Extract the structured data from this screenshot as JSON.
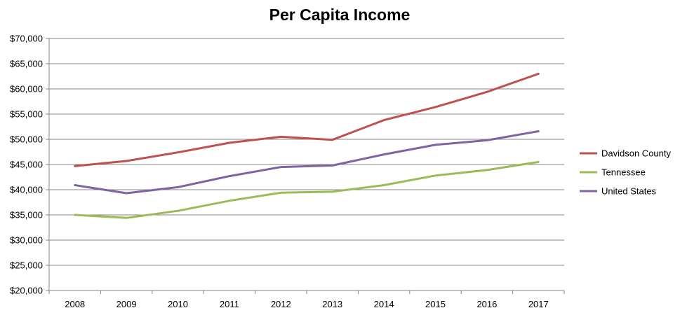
{
  "chart_data": {
    "type": "line",
    "title": "Per Capita Income",
    "xlabel": "",
    "ylabel": "",
    "categories": [
      "2008",
      "2009",
      "2010",
      "2011",
      "2012",
      "2013",
      "2014",
      "2015",
      "2016",
      "2017"
    ],
    "ylim": [
      20000,
      70000
    ],
    "ystep": 5000,
    "ytick_labels": [
      "$20,000",
      "$25,000",
      "$30,000",
      "$35,000",
      "$40,000",
      "$45,000",
      "$50,000",
      "$55,000",
      "$60,000",
      "$65,000",
      "$70,000"
    ],
    "grid": true,
    "legend_position": "right",
    "series": [
      {
        "name": "Davidson County",
        "color": "#C0504D",
        "values": [
          44700,
          45700,
          47400,
          49300,
          50500,
          49900,
          53800,
          56400,
          59400,
          63000
        ]
      },
      {
        "name": "Tennessee",
        "color": "#9BBB59",
        "values": [
          35000,
          34400,
          35800,
          37800,
          39400,
          39600,
          40900,
          42800,
          43900,
          45500
        ]
      },
      {
        "name": "United States",
        "color": "#8064A2",
        "values": [
          40900,
          39300,
          40500,
          42700,
          44500,
          44800,
          47000,
          48900,
          49800,
          51600
        ]
      }
    ]
  }
}
